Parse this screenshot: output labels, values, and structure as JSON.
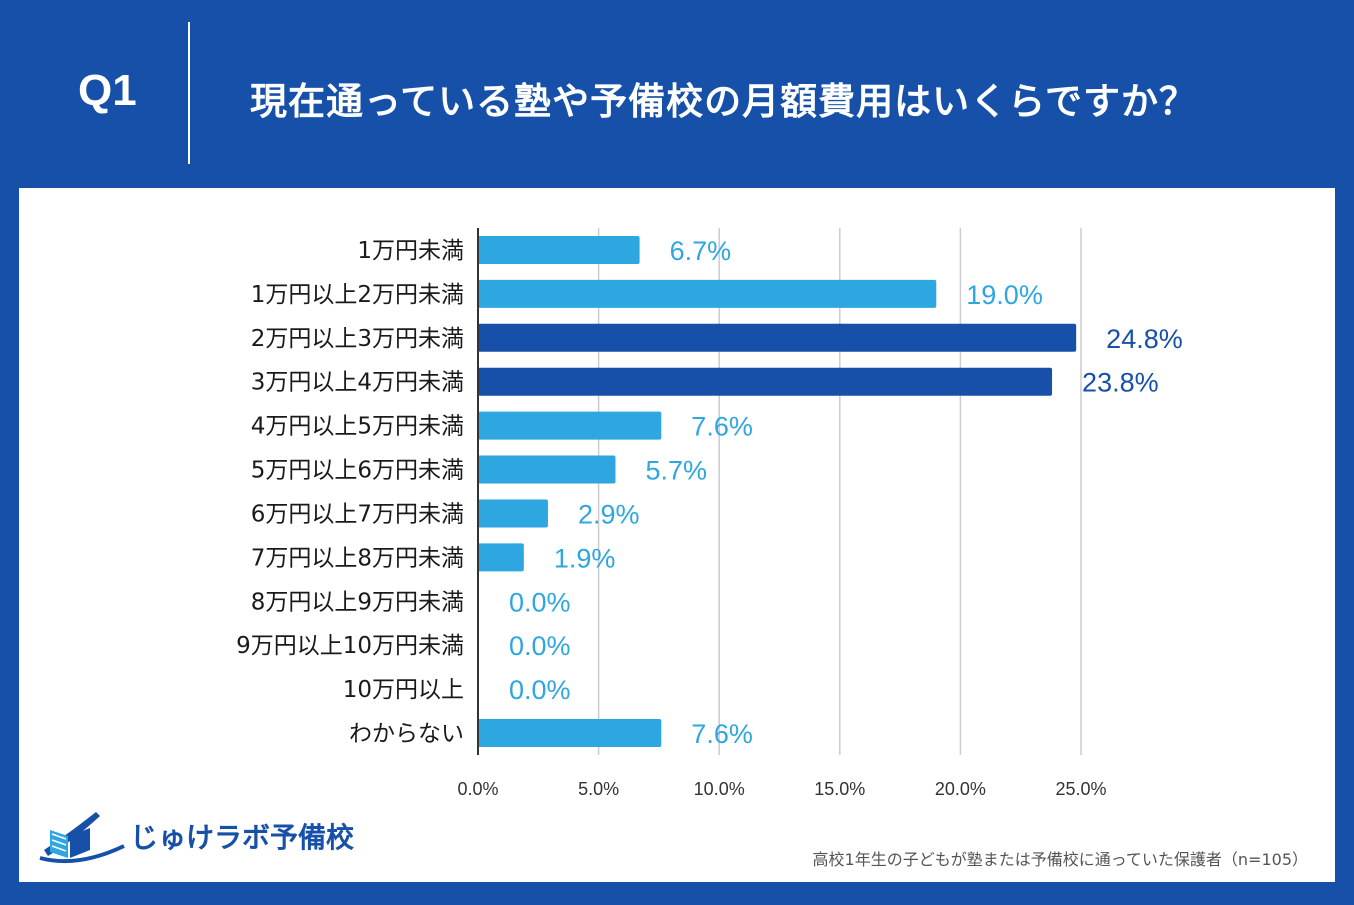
{
  "header": {
    "q_label": "Q1",
    "question": "現在通っている塾や予備校の月額費用はいくらですか？"
  },
  "colors": {
    "background": "#1650a8",
    "bar_default": "#2ea6e0",
    "bar_highlight": "#1650a8",
    "label_default": "#2ea6e0",
    "label_highlight": "#1650a8",
    "grid": "#cccccc"
  },
  "chart_data": {
    "type": "bar",
    "orientation": "horizontal",
    "categories": [
      "1万円未満",
      "1万円以上2万円未満",
      "2万円以上3万円未満",
      "3万円以上4万円未満",
      "4万円以上5万円未満",
      "5万円以上6万円未満",
      "6万円以上7万円未満",
      "7万円以上8万円未満",
      "8万円以上9万円未満",
      "9万円以上10万円未満",
      "10万円以上",
      "わからない"
    ],
    "values": [
      6.7,
      19.0,
      24.8,
      23.8,
      7.6,
      5.7,
      2.9,
      1.9,
      0.0,
      0.0,
      0.0,
      7.6
    ],
    "value_labels": [
      "6.7%",
      "19.0%",
      "24.8%",
      "23.8%",
      "7.6%",
      "5.7%",
      "2.9%",
      "1.9%",
      "0.0%",
      "0.0%",
      "0.0%",
      "7.6%"
    ],
    "highlighted": [
      false,
      false,
      true,
      true,
      false,
      false,
      false,
      false,
      false,
      false,
      false,
      false
    ],
    "xlim": [
      0,
      25
    ],
    "x_ticks": [
      0,
      5,
      10,
      15,
      20,
      25
    ],
    "x_tick_labels": [
      "0.0%",
      "5.0%",
      "10.0%",
      "15.0%",
      "20.0%",
      "25.0%"
    ],
    "grid": true,
    "legend": "none"
  },
  "logo": {
    "text": "じゅけラボ予備校",
    "icon": "open-book-icon"
  },
  "footnote": "高校1年生の子どもが塾または予備校に通っていた保護者（n=105）"
}
